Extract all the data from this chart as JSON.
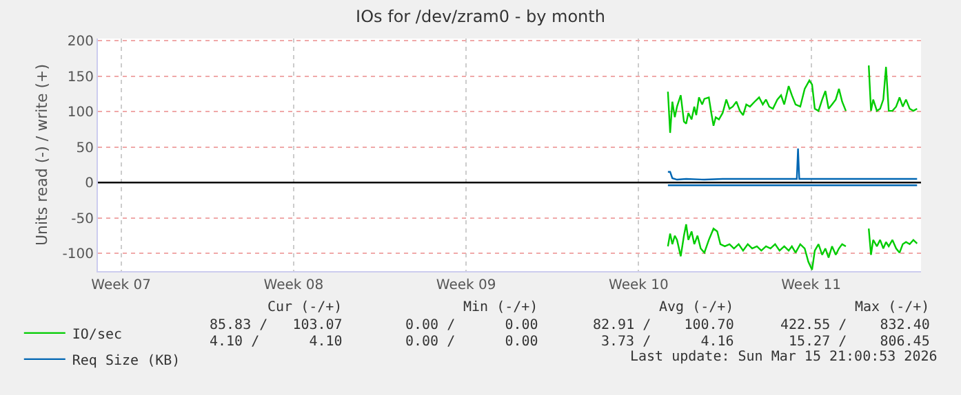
{
  "chart_data": {
    "type": "line",
    "title": "IOs for /dev/zram0 - by month",
    "ylabel": "Units read (-) / write (+)",
    "xlim": [
      "2026-02-10T12:00",
      "2026-03-15T21:36"
    ],
    "ylim": [
      -125,
      203
    ],
    "xticks": [
      {
        "value": "2026-02-11T10:34",
        "label": "Week 07"
      },
      {
        "value": "2026-02-18T10:34",
        "label": "Week 08"
      },
      {
        "value": "2026-02-25T10:34",
        "label": "Week 09"
      },
      {
        "value": "2026-03-04T10:34",
        "label": "Week 10"
      },
      {
        "value": "2026-03-11T10:34",
        "label": "Week 11"
      }
    ],
    "yticks": [
      -100,
      -50,
      0,
      50,
      100,
      150,
      200
    ],
    "grid": true,
    "legend": "bottom left",
    "marker": "none",
    "line_style": "solid",
    "ref_lines": [
      {
        "axis": "y",
        "value": 0,
        "color": "#000000"
      }
    ],
    "series": [
      {
        "name": "IO/sec",
        "color": "#00cc00",
        "x": [
          "2026-03-05T15:07",
          "2026-03-05T17:17",
          "2026-03-05T19:26",
          "2026-03-05T21:50",
          "2026-03-06T00:00",
          "2026-03-06T03:36",
          "2026-03-06T06:43",
          "2026-03-06T08:53",
          "2026-03-06T11:02",
          "2026-03-06T14:10",
          "2026-03-06T16:48",
          "2026-03-06T18:43",
          "2026-03-06T21:22",
          "2026-03-07T00:29",
          "2026-03-07T02:38",
          "2026-03-07T06:58",
          "2026-03-07T09:22",
          "2026-03-07T11:31",
          "2026-03-07T13:41",
          "2026-03-07T16:48",
          "2026-03-07T20:24",
          "2026-03-08T00:00",
          "2026-03-08T03:07",
          "2026-03-08T06:14",
          "2026-03-08T09:50",
          "2026-03-08T13:12",
          "2026-03-08T16:19",
          "2026-03-08T19:26",
          "2026-03-08T23:02",
          "2026-03-09T03:36",
          "2026-03-09T07:55",
          "2026-03-09T11:31",
          "2026-03-09T14:38",
          "2026-03-09T17:46",
          "2026-03-09T21:22",
          "2026-03-10T01:41",
          "2026-03-10T05:17",
          "2026-03-10T08:24",
          "2026-03-10T12:43",
          "2026-03-10T15:50",
          "2026-03-10T19:26",
          "2026-03-11T00:00",
          "2026-03-11T04:19",
          "2026-03-11T08:53",
          "2026-03-11T11:31",
          "2026-03-11T14:10",
          "2026-03-11T17:46",
          "2026-03-11T21:22",
          "2026-03-12T00:29",
          "2026-03-12T03:36",
          "2026-03-12T06:58",
          "2026-03-12T10:34",
          "2026-03-12T13:41",
          "2026-03-12T16:48",
          "2026-03-12T20:24",
          "2026-03-13T07:26",
          "2026-03-13T18:43",
          "2026-03-13T20:53",
          "2026-03-13T23:02",
          "2026-03-14T02:38",
          "2026-03-14T05:46",
          "2026-03-14T08:53",
          "2026-03-14T11:31",
          "2026-03-14T14:10",
          "2026-03-14T17:46",
          "2026-03-14T21:22",
          "2026-03-15T00:43",
          "2026-03-15T03:50",
          "2026-03-15T06:58",
          "2026-03-15T10:34",
          "2026-03-15T14:10",
          "2026-03-15T17:46"
        ],
        "values": [
          128,
          70,
          114,
          92,
          107,
          123,
          86,
          83,
          98,
          89,
          107,
          95,
          120,
          110,
          118,
          120,
          98,
          80,
          92,
          89,
          98,
          117,
          104,
          107,
          114,
          101,
          95,
          110,
          107,
          114,
          120,
          110,
          117,
          107,
          104,
          117,
          123,
          110,
          136,
          123,
          110,
          107,
          132,
          144,
          138,
          104,
          101,
          117,
          129,
          104,
          110,
          117,
          132,
          114,
          101,
          null,
          165,
          101,
          117,
          101,
          104,
          117,
          163,
          101,
          101,
          107,
          120,
          107,
          117,
          104,
          101,
          104
        ]
      },
      {
        "color": "#00cc00",
        "x": [
          "2026-03-05T15:07",
          "2026-03-05T17:17",
          "2026-03-05T19:26",
          "2026-03-05T21:50",
          "2026-03-06T00:00",
          "2026-03-06T03:36",
          "2026-03-06T06:43",
          "2026-03-06T08:53",
          "2026-03-06T11:02",
          "2026-03-06T14:10",
          "2026-03-06T16:48",
          "2026-03-06T19:55",
          "2026-03-06T23:02",
          "2026-03-07T02:38",
          "2026-03-07T06:58",
          "2026-03-07T11:31",
          "2026-03-07T15:07",
          "2026-03-07T18:14",
          "2026-03-07T22:34",
          "2026-03-08T03:07",
          "2026-03-08T07:26",
          "2026-03-08T12:00",
          "2026-03-08T16:19",
          "2026-03-08T20:53",
          "2026-03-09T01:12",
          "2026-03-09T05:46",
          "2026-03-09T10:05",
          "2026-03-09T14:38",
          "2026-03-09T18:58",
          "2026-03-09T23:31",
          "2026-03-10T03:50",
          "2026-03-10T08:24",
          "2026-03-10T12:43",
          "2026-03-10T15:50",
          "2026-03-10T19:26",
          "2026-03-11T00:00",
          "2026-03-11T04:19",
          "2026-03-11T07:55",
          "2026-03-11T11:31",
          "2026-03-11T14:10",
          "2026-03-11T17:46",
          "2026-03-11T21:22",
          "2026-03-12T00:29",
          "2026-03-12T03:36",
          "2026-03-12T06:58",
          "2026-03-12T10:34",
          "2026-03-12T13:41",
          "2026-03-12T16:48",
          "2026-03-12T20:24",
          "2026-03-13T07:26",
          "2026-03-13T18:43",
          "2026-03-13T20:53",
          "2026-03-13T23:02",
          "2026-03-14T02:38",
          "2026-03-14T05:46",
          "2026-03-14T08:53",
          "2026-03-14T11:31",
          "2026-03-14T14:10",
          "2026-03-14T17:46",
          "2026-03-14T21:22",
          "2026-03-15T00:43",
          "2026-03-15T03:50",
          "2026-03-15T06:58",
          "2026-03-15T10:34",
          "2026-03-15T14:10",
          "2026-03-15T17:46"
        ],
        "values": [
          -90,
          -72,
          -87,
          -75,
          -81,
          -104,
          -75,
          -59,
          -81,
          -69,
          -87,
          -75,
          -93,
          -99,
          -81,
          -65,
          -69,
          -87,
          -90,
          -87,
          -93,
          -87,
          -96,
          -87,
          -93,
          -90,
          -96,
          -90,
          -93,
          -87,
          -96,
          -90,
          -96,
          -90,
          -99,
          -87,
          -93,
          -112,
          -123,
          -96,
          -87,
          -102,
          -93,
          -106,
          -90,
          -102,
          -93,
          -87,
          -90,
          null,
          -65,
          -102,
          -81,
          -90,
          -81,
          -93,
          -84,
          -90,
          -81,
          -93,
          -99,
          -87,
          -84,
          -87,
          -81,
          -86
        ]
      },
      {
        "name": "Req Size (KB)",
        "color": "#0066b3",
        "x": [
          "2026-03-05T15:07",
          "2026-03-05T17:17",
          "2026-03-05T19:26",
          "2026-03-06T00:00",
          "2026-03-06T08:53",
          "2026-03-07T02:38",
          "2026-03-07T20:24",
          "2026-03-08T14:10",
          "2026-03-09T07:55",
          "2026-03-10T19:26",
          "2026-03-10T20:38",
          "2026-03-10T21:50",
          "2026-03-10T23:02",
          "2026-03-11T13:12",
          "2026-03-12T20:24",
          "2026-03-13T18:43",
          "2026-03-15T17:46"
        ],
        "values": [
          15,
          15,
          6,
          4,
          5,
          4,
          5,
          5,
          5,
          5,
          5,
          48,
          5,
          5,
          5,
          5,
          5
        ]
      },
      {
        "color": "#0066b3",
        "x": [
          "2026-03-05T15:07",
          "2026-03-10T12:00",
          "2026-03-15T17:46"
        ],
        "values": [
          -4,
          -4,
          -4
        ]
      }
    ],
    "annotations": [
      "Cur (-/+)",
      "Min (-/+)",
      "Avg (-/+)",
      "Max (-/+)",
      "85.83 /   103.07",
      "0.00 /      0.00",
      "82.91 /    100.70",
      "422.55 /    832.40",
      "4.10 /      4.10",
      "0.00 /      0.00",
      "3.73 /      4.16",
      "15.27 /    806.45",
      "Last update: Sun Mar 15 21:00:53 2026"
    ]
  }
}
